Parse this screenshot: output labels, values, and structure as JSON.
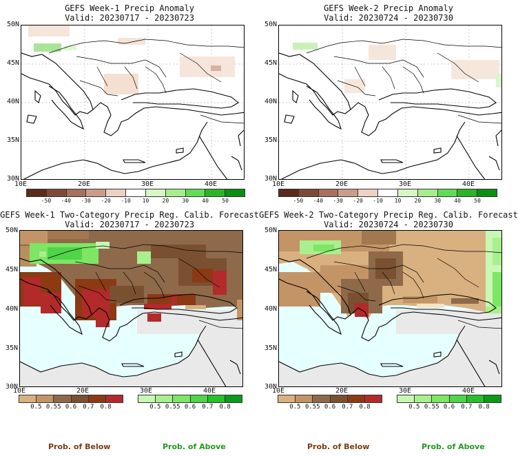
{
  "panels": [
    {
      "title": "GEFS Week-1 Precip Anomaly",
      "valid": "Valid: 20230717 - 20230723"
    },
    {
      "title": "GEFS Week-2 Precip Anomaly",
      "valid": "Valid: 20230724 - 20230730"
    },
    {
      "title": "GEFS Week-1 Two-Category Precip Reg. Calib. Forecast",
      "valid": "Valid: 20230717 - 20230723"
    },
    {
      "title": "GEFS Week-2 Two-Category Precip Reg. Calib. Forecast",
      "valid": "Valid: 20230724 - 20230730"
    }
  ],
  "lat_labels": [
    "50N",
    "45N",
    "40N",
    "35N",
    "30N"
  ],
  "lon_labels": [
    "10E",
    "20E",
    "30E",
    "40E"
  ],
  "anomaly_scale": {
    "labels": [
      "-50",
      "-40",
      "-30",
      "-20",
      "-10",
      "10",
      "20",
      "30",
      "40",
      "50"
    ],
    "colors": [
      "#5a2a1a",
      "#7e4a38",
      "#a6705e",
      "#c99d8a",
      "#ead2c4",
      "#ffffff",
      "#d7f7c4",
      "#a6ee8c",
      "#60dd58",
      "#2db32a",
      "#0a8f12"
    ]
  },
  "prob_below_scale": {
    "labels": [
      "0.5",
      "0.55",
      "0.6",
      "0.7",
      "0.8"
    ],
    "colors": [
      "#d9b07f",
      "#c39566",
      "#8e6a4a",
      "#7a5130",
      "#8b3a14",
      "#b32a2a"
    ]
  },
  "prob_above_scale": {
    "labels": [
      "0.5",
      "0.55",
      "0.6",
      "0.7",
      "0.8"
    ],
    "colors": [
      "#c9f7b4",
      "#a8f08e",
      "#7ee565",
      "#4fd44a",
      "#27c12a",
      "#0a9b1a"
    ]
  },
  "footer": {
    "below_label": "Prob. of Below",
    "above_label": "Prob. of Above",
    "below_color": "#7a3a10",
    "above_color": "#1f9a1f"
  }
}
